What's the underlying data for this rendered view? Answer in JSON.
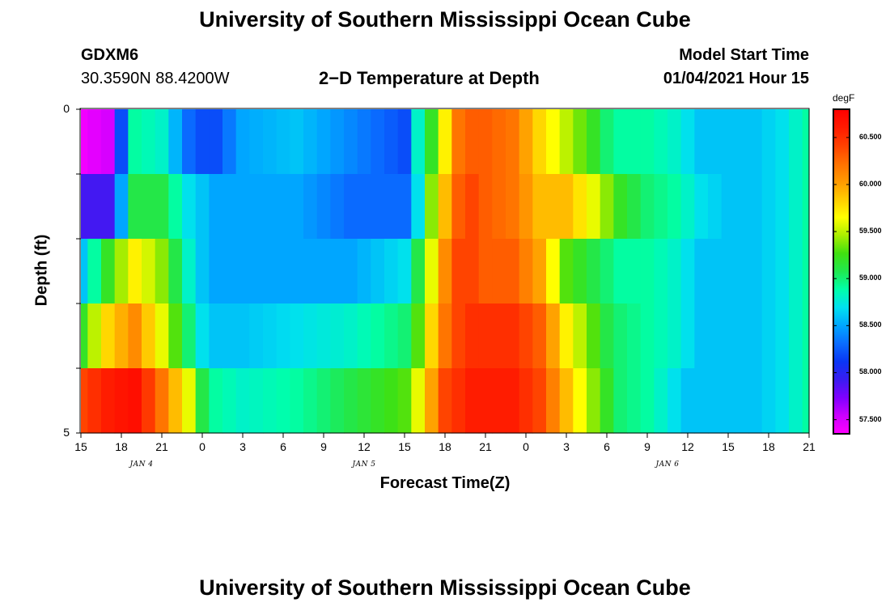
{
  "page": {
    "title_top": "University of Southern Mississippi Ocean Cube",
    "title_bottom": "University of Southern Mississippi Ocean Cube",
    "station_id": "GDXM6",
    "station_coords": "30.3590N 88.4200W",
    "model_start_label": "Model Start Time",
    "model_start_value": "01/04/2021 Hour 15"
  },
  "colors": {
    "scale": [
      "#ff00ff",
      "#cc00ff",
      "#8000ff",
      "#3a1cf0",
      "#0a36f5",
      "#0a6cff",
      "#00a6ff",
      "#00e0f0",
      "#00ffaa",
      "#20e850",
      "#40e010",
      "#aaee00",
      "#ffff00",
      "#ffcc00",
      "#ff9900",
      "#ff7000",
      "#ff4000",
      "#ff1a00",
      "#ff0000"
    ]
  },
  "chart_data": {
    "type": "heatmap",
    "title": "2−D Temperature at Depth",
    "xlabel": "Forecast Time(Z)",
    "ylabel": "Depth (ft)",
    "x_tick_labels": [
      "15",
      "18",
      "21",
      "0",
      "3",
      "6",
      "9",
      "12",
      "15",
      "18",
      "21",
      "0",
      "3",
      "6",
      "9",
      "12",
      "15",
      "18",
      "21"
    ],
    "x_hours": [
      0,
      3,
      6,
      9,
      12,
      15,
      18,
      21,
      24,
      27,
      30,
      33,
      36,
      39,
      42,
      45,
      48,
      51,
      54
    ],
    "x_range_hours": [
      0,
      54
    ],
    "date_labels": [
      {
        "text": "JAN 4",
        "hour": 4.5
      },
      {
        "text": "JAN 5",
        "hour": 21
      },
      {
        "text": "JAN 6",
        "hour": 43.5
      }
    ],
    "y_tick_labels": [
      "0",
      "",
      "",
      "",
      "",
      "5"
    ],
    "y_range": [
      0,
      5
    ],
    "depth_levels": [
      0,
      1,
      2,
      3,
      4
    ],
    "colorbar": {
      "unit": "degF",
      "min": 57.35,
      "max": 60.8,
      "ticks": [
        {
          "value": 57.5,
          "label": "57.500"
        },
        {
          "value": 58.0,
          "label": "58.000"
        },
        {
          "value": 58.5,
          "label": "58.500"
        },
        {
          "value": 59.0,
          "label": "59.000"
        },
        {
          "value": 59.5,
          "label": "59.500"
        },
        {
          "value": 60.0,
          "label": "60.000"
        },
        {
          "value": 60.5,
          "label": "60.500"
        }
      ]
    },
    "keyframes_hours": [
      0,
      2,
      4,
      6,
      8,
      9,
      10,
      12,
      16,
      20,
      24,
      25,
      26,
      27,
      28,
      29,
      30,
      32,
      34,
      36,
      38,
      39,
      40,
      42,
      44,
      45,
      46,
      48,
      50,
      52,
      54
    ],
    "series": [
      {
        "name": "depth 0-1 ft",
        "values": [
          57.4,
          57.5,
          58.9,
          58.8,
          58.3,
          58.2,
          58.2,
          58.5,
          58.6,
          58.4,
          58.2,
          58.8,
          59.2,
          59.7,
          60.2,
          60.3,
          60.3,
          60.2,
          59.8,
          59.5,
          59.2,
          59.0,
          58.9,
          58.9,
          58.8,
          58.7,
          58.6,
          58.6,
          58.6,
          58.7,
          58.9
        ]
      },
      {
        "name": "depth 1-2 ft",
        "values": [
          57.9,
          57.9,
          59.1,
          59.1,
          58.7,
          58.6,
          58.5,
          58.5,
          58.5,
          58.3,
          58.3,
          58.7,
          59.4,
          59.9,
          60.3,
          60.4,
          60.3,
          60.2,
          59.9,
          59.9,
          59.6,
          59.4,
          59.2,
          59.0,
          58.9,
          58.8,
          58.7,
          58.6,
          58.6,
          58.7,
          58.9
        ]
      },
      {
        "name": "depth 2-3 ft",
        "values": [
          58.6,
          59.2,
          59.7,
          59.4,
          58.8,
          58.6,
          58.5,
          58.5,
          58.5,
          58.5,
          58.7,
          59.1,
          59.6,
          60.1,
          60.4,
          60.4,
          60.3,
          60.3,
          60.0,
          59.3,
          59.1,
          59.0,
          58.9,
          58.9,
          58.8,
          58.7,
          58.6,
          58.6,
          58.6,
          58.7,
          58.9
        ]
      },
      {
        "name": "depth 3-4 ft",
        "values": [
          59.2,
          59.8,
          60.1,
          59.6,
          59.0,
          58.7,
          58.6,
          58.6,
          58.7,
          58.8,
          59.0,
          59.3,
          59.8,
          60.2,
          60.4,
          60.5,
          60.5,
          60.5,
          60.3,
          59.7,
          59.3,
          59.1,
          59.0,
          58.9,
          58.8,
          58.7,
          58.6,
          58.6,
          58.6,
          58.7,
          58.9
        ]
      },
      {
        "name": "depth 4-5 ft",
        "values": [
          60.4,
          60.6,
          60.7,
          60.2,
          59.6,
          59.1,
          58.9,
          58.8,
          58.9,
          59.1,
          59.3,
          59.6,
          60.0,
          60.4,
          60.5,
          60.6,
          60.6,
          60.6,
          60.4,
          59.9,
          59.4,
          59.2,
          59.0,
          58.9,
          58.7,
          58.6,
          58.6,
          58.6,
          58.6,
          58.7,
          58.9
        ]
      }
    ]
  }
}
